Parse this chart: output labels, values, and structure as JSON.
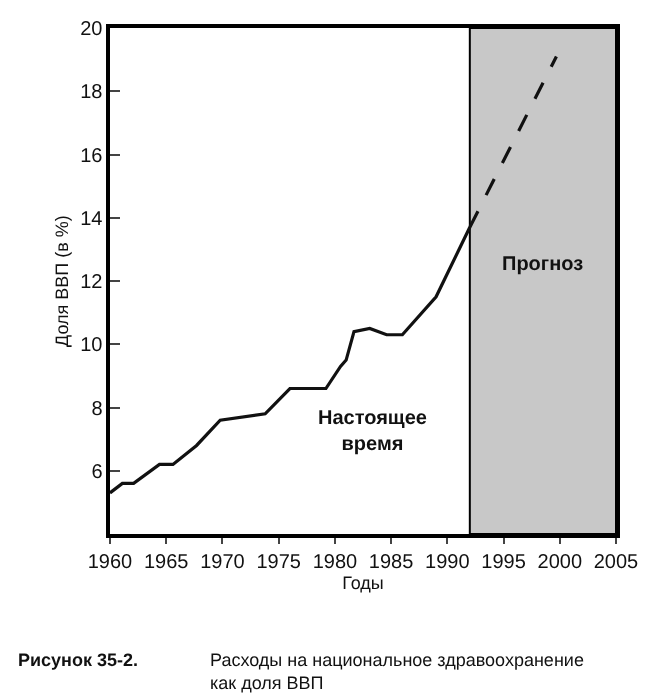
{
  "chart_data": {
    "type": "line",
    "xlabel": "Годы",
    "ylabel": "Доля ВВП (в %)",
    "series": [
      {
        "color": "#111111",
        "line_style": "solid",
        "x": [
          1960,
          1961.1,
          1962.1,
          1964.4,
          1965.6,
          1967.7,
          1969.8,
          1973.8,
          1976,
          1979.2,
          1980.5,
          1981,
          1981.7,
          1983.1,
          1984.6,
          1986,
          1989,
          1992
        ],
        "values": [
          5.3,
          5.6,
          5.6,
          6.2,
          6.2,
          6.8,
          7.6,
          7.8,
          8.6,
          8.6,
          9.3,
          9.5,
          10.4,
          10.5,
          10.3,
          10.3,
          11.5,
          13.7
        ]
      },
      {
        "color": "#111111",
        "line_style": "dashed",
        "x": [
          1992,
          1999.7
        ],
        "values": [
          13.7,
          19.1
        ]
      }
    ],
    "xlim": [
      1960,
      2005
    ],
    "xticks": [
      1960,
      1965,
      1970,
      1975,
      1980,
      1985,
      1990,
      1995,
      2000,
      2005
    ],
    "ylim": [
      4,
      20
    ],
    "yticks": [
      6,
      8,
      10,
      12,
      14,
      16,
      18,
      20
    ],
    "bands": [
      {
        "axis": "x",
        "from": 1992,
        "to": 2005,
        "label": "Прогноз",
        "color": "#c8c8c8"
      }
    ],
    "annotations": [
      "Настоящее\nвремя",
      "Рисунок 35-2.",
      "Расходы на национальное здравоохранение\nкак доля ВВП"
    ],
    "grid": false,
    "marker": "none"
  }
}
